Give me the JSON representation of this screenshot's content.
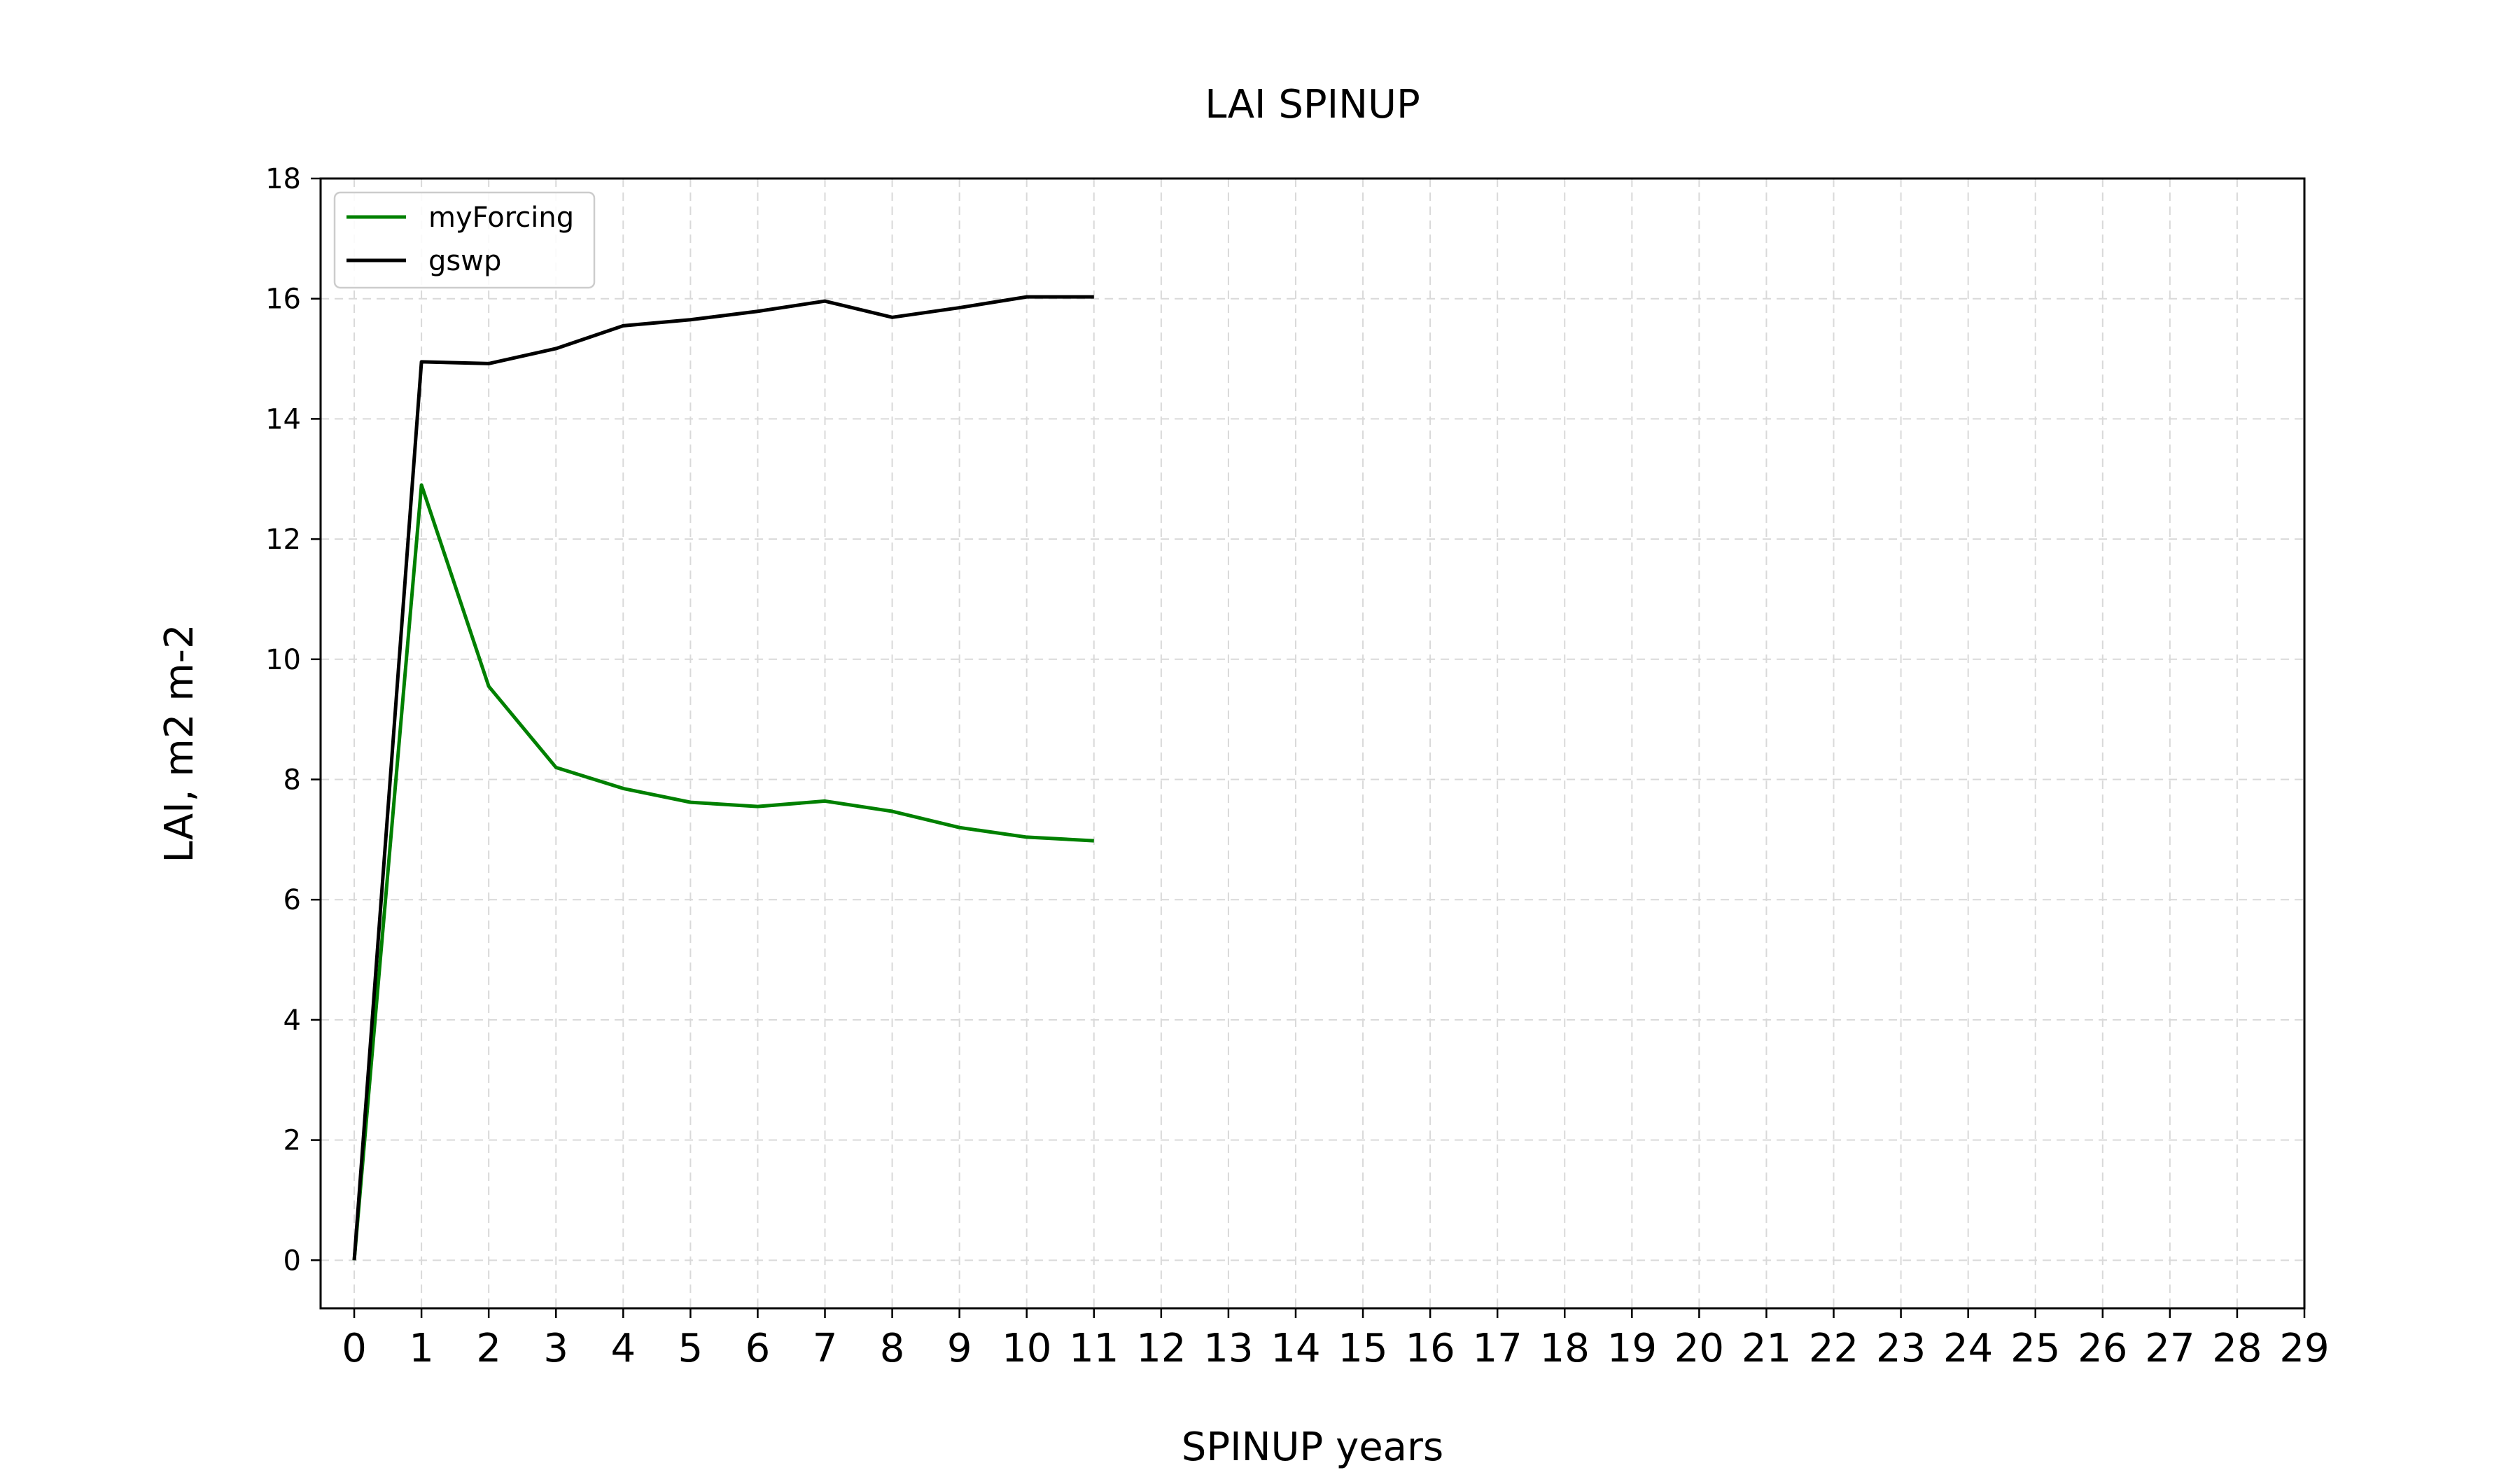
{
  "chart_data": {
    "type": "line",
    "title": "LAI SPINUP",
    "xlabel": "SPINUP years",
    "ylabel": "LAI, m2 m-2",
    "xlim": [
      -0.5,
      29
    ],
    "ylim": [
      -0.8,
      18
    ],
    "xticks": [
      0,
      1,
      2,
      3,
      4,
      5,
      6,
      7,
      8,
      9,
      10,
      11,
      12,
      13,
      14,
      15,
      16,
      17,
      18,
      19,
      20,
      21,
      22,
      23,
      24,
      25,
      26,
      27,
      28,
      29
    ],
    "yticks": [
      0,
      2,
      4,
      6,
      8,
      10,
      12,
      14,
      16,
      18
    ],
    "grid": true,
    "legend_position": "top-left",
    "x": [
      0,
      1,
      2,
      3,
      4,
      5,
      6,
      7,
      8,
      9,
      10,
      11
    ],
    "series": [
      {
        "name": "myForcing",
        "color": "#008000",
        "values": [
          0,
          12.9,
          9.55,
          8.2,
          7.85,
          7.62,
          7.55,
          7.64,
          7.47,
          7.2,
          7.04,
          6.98
        ]
      },
      {
        "name": "gswp",
        "color": "#000000",
        "values": [
          0,
          14.95,
          14.92,
          15.17,
          15.55,
          15.65,
          15.79,
          15.96,
          15.69,
          15.85,
          16.03,
          16.03
        ]
      }
    ]
  }
}
